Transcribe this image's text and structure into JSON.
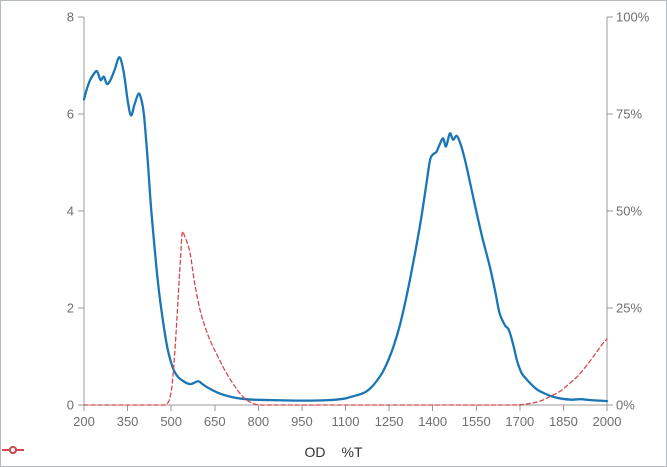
{
  "chart_data": {
    "type": "line",
    "title": "",
    "xlabel": "",
    "ylabel_left": "",
    "ylabel_right": "",
    "grid": false,
    "legend_position": "bottom",
    "x_axis": {
      "min": 200,
      "max": 2000,
      "ticks": [
        200,
        350,
        500,
        650,
        800,
        950,
        1100,
        1250,
        1400,
        1550,
        1700,
        1850,
        2000
      ]
    },
    "y_axis_left": {
      "min": 0,
      "max": 8,
      "ticks": [
        0,
        2,
        4,
        6,
        8
      ]
    },
    "y_axis_right": {
      "min": 0,
      "max": 100,
      "ticks": [
        0,
        25,
        50,
        75,
        100
      ],
      "tick_suffix": "%"
    },
    "series": [
      {
        "name": "OD",
        "axis": "left",
        "color": "#1b76b5",
        "style": "solid",
        "line_width": 2.3,
        "points": [
          [
            200,
            6.3
          ],
          [
            209,
            6.5
          ],
          [
            221,
            6.7
          ],
          [
            233,
            6.82
          ],
          [
            245,
            6.88
          ],
          [
            257,
            6.7
          ],
          [
            268,
            6.77
          ],
          [
            279,
            6.62
          ],
          [
            291,
            6.7
          ],
          [
            306,
            6.92
          ],
          [
            322,
            7.17
          ],
          [
            337,
            6.85
          ],
          [
            351,
            6.25
          ],
          [
            362,
            5.97
          ],
          [
            374,
            6.2
          ],
          [
            388,
            6.42
          ],
          [
            398,
            6.28
          ],
          [
            406,
            6.0
          ],
          [
            414,
            5.45
          ],
          [
            421,
            4.9
          ],
          [
            429,
            4.2
          ],
          [
            439,
            3.5
          ],
          [
            449,
            2.85
          ],
          [
            459,
            2.3
          ],
          [
            469,
            1.85
          ],
          [
            479,
            1.45
          ],
          [
            489,
            1.12
          ],
          [
            500,
            0.87
          ],
          [
            512,
            0.68
          ],
          [
            525,
            0.57
          ],
          [
            540,
            0.5
          ],
          [
            554,
            0.45
          ],
          [
            567,
            0.43
          ],
          [
            580,
            0.46
          ],
          [
            594,
            0.49
          ],
          [
            608,
            0.43
          ],
          [
            623,
            0.37
          ],
          [
            641,
            0.31
          ],
          [
            662,
            0.25
          ],
          [
            686,
            0.2
          ],
          [
            712,
            0.16
          ],
          [
            742,
            0.13
          ],
          [
            782,
            0.11
          ],
          [
            850,
            0.1
          ],
          [
            950,
            0.09
          ],
          [
            1040,
            0.1
          ],
          [
            1095,
            0.13
          ],
          [
            1120,
            0.17
          ],
          [
            1138,
            0.2
          ],
          [
            1155,
            0.23
          ],
          [
            1172,
            0.28
          ],
          [
            1190,
            0.37
          ],
          [
            1208,
            0.5
          ],
          [
            1228,
            0.68
          ],
          [
            1247,
            0.92
          ],
          [
            1266,
            1.22
          ],
          [
            1286,
            1.62
          ],
          [
            1305,
            2.1
          ],
          [
            1324,
            2.65
          ],
          [
            1343,
            3.25
          ],
          [
            1361,
            3.87
          ],
          [
            1377,
            4.5
          ],
          [
            1391,
            5.05
          ],
          [
            1402,
            5.17
          ],
          [
            1413,
            5.22
          ],
          [
            1424,
            5.37
          ],
          [
            1436,
            5.5
          ],
          [
            1446,
            5.33
          ],
          [
            1459,
            5.6
          ],
          [
            1470,
            5.47
          ],
          [
            1483,
            5.55
          ],
          [
            1496,
            5.38
          ],
          [
            1511,
            5.06
          ],
          [
            1527,
            4.63
          ],
          [
            1547,
            4.08
          ],
          [
            1571,
            3.45
          ],
          [
            1596,
            2.87
          ],
          [
            1616,
            2.32
          ],
          [
            1630,
            1.9
          ],
          [
            1648,
            1.65
          ],
          [
            1662,
            1.55
          ],
          [
            1677,
            1.25
          ],
          [
            1691,
            0.9
          ],
          [
            1706,
            0.66
          ],
          [
            1719,
            0.56
          ],
          [
            1737,
            0.44
          ],
          [
            1759,
            0.32
          ],
          [
            1784,
            0.24
          ],
          [
            1814,
            0.17
          ],
          [
            1844,
            0.13
          ],
          [
            1877,
            0.11
          ],
          [
            1909,
            0.12
          ],
          [
            1944,
            0.1
          ],
          [
            1974,
            0.09
          ],
          [
            2000,
            0.08
          ]
        ]
      },
      {
        "name": "%T",
        "axis": "right",
        "color": "#d5494c",
        "style": "dashed",
        "line_width": 1.3,
        "points": [
          [
            200,
            0
          ],
          [
            300,
            0
          ],
          [
            400,
            0
          ],
          [
            470,
            0
          ],
          [
            483,
            0.2
          ],
          [
            493,
            1.2
          ],
          [
            502,
            4.5
          ],
          [
            510,
            11
          ],
          [
            518,
            20
          ],
          [
            525,
            29
          ],
          [
            532,
            37.5
          ],
          [
            538,
            44.3
          ],
          [
            545,
            43.8
          ],
          [
            555,
            41.8
          ],
          [
            566,
            38.8
          ],
          [
            580,
            31.8
          ],
          [
            599,
            24.6
          ],
          [
            619,
            19.6
          ],
          [
            639,
            15.8
          ],
          [
            660,
            12.6
          ],
          [
            680,
            9.6
          ],
          [
            700,
            7.0
          ],
          [
            720,
            4.7
          ],
          [
            740,
            2.7
          ],
          [
            760,
            1.3
          ],
          [
            778,
            0.5
          ],
          [
            796,
            0.1
          ],
          [
            815,
            0
          ],
          [
            900,
            0
          ],
          [
            1050,
            0
          ],
          [
            1250,
            0
          ],
          [
            1450,
            0
          ],
          [
            1580,
            0
          ],
          [
            1660,
            0
          ],
          [
            1700,
            0.05
          ],
          [
            1725,
            0.3
          ],
          [
            1750,
            0.6
          ],
          [
            1780,
            1.3
          ],
          [
            1810,
            2.4
          ],
          [
            1840,
            3.6
          ],
          [
            1870,
            5.5
          ],
          [
            1900,
            7.5
          ],
          [
            1930,
            10.2
          ],
          [
            1960,
            13.2
          ],
          [
            1985,
            15.8
          ],
          [
            2000,
            17.0
          ]
        ]
      }
    ]
  },
  "colors": {
    "axis": "#9b9b9b",
    "tick_label": "#6f6f6f",
    "legend_text": "#333333",
    "background": "#ffffff",
    "border": "#b3b9bd"
  }
}
